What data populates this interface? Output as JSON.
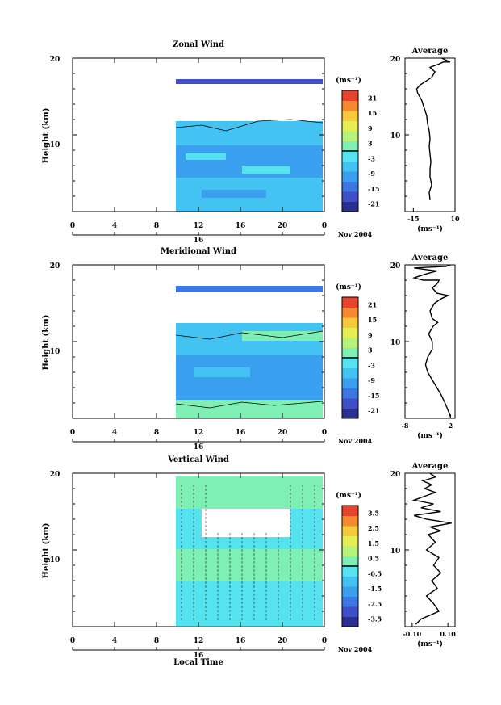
{
  "colors": {
    "bg": "#ffffff",
    "axis": "#000000",
    "scale": [
      "#2b2f8f",
      "#3f4fc8",
      "#3c76e3",
      "#3b9ff0",
      "#43c3f2",
      "#55e3ef",
      "#7ff0b4",
      "#b7f27a",
      "#e6ee54",
      "#f6c93a",
      "#f38a2d",
      "#e8432b"
    ]
  },
  "panels": [
    {
      "title": "Zonal Wind",
      "ylabel": "Height (km)",
      "y_ticks": [
        "20",
        "10"
      ],
      "x_ticks": [
        "0",
        "4",
        "8",
        "12",
        "16",
        "20",
        "0"
      ],
      "day_label": "16",
      "date_label": "Nov 2004",
      "cb_unit": "(ms⁻¹)",
      "cb_ticks": [
        "21",
        "15",
        "9",
        "3",
        "-3",
        "-9",
        "-15",
        "-21"
      ],
      "avg": {
        "title": "Average",
        "x_ticks": [
          "-15",
          "10"
        ],
        "unit": "(ms⁻¹)",
        "xlim": [
          -20,
          10
        ],
        "y_ticks": [
          "20",
          "10"
        ],
        "profile": [
          [
            -5,
            1.5
          ],
          [
            -5.5,
            2.5
          ],
          [
            -4,
            3.5
          ],
          [
            -5,
            4.5
          ],
          [
            -5,
            5.5
          ],
          [
            -4.5,
            6.5
          ],
          [
            -5,
            7.5
          ],
          [
            -5.5,
            8.5
          ],
          [
            -5,
            9.5
          ],
          [
            -5.5,
            10.5
          ],
          [
            -6.5,
            11.5
          ],
          [
            -7,
            12.5
          ],
          [
            -8.5,
            13.5
          ],
          [
            -10,
            14.5
          ],
          [
            -12.5,
            15.5
          ],
          [
            -13,
            16
          ],
          [
            -11,
            16.5
          ],
          [
            -4,
            17.5
          ],
          [
            -2,
            18.2
          ],
          [
            -5,
            18.8
          ],
          [
            0,
            19.2
          ],
          [
            3,
            19.5
          ],
          [
            7,
            19.5
          ],
          [
            2,
            20
          ]
        ]
      }
    },
    {
      "title": "Meridional Wind",
      "ylabel": "Height (km)",
      "y_ticks": [
        "20",
        "10"
      ],
      "x_ticks": [
        "0",
        "4",
        "8",
        "12",
        "16",
        "20",
        "0"
      ],
      "day_label": "16",
      "date_label": "Nov 2004",
      "cb_unit": "(ms⁻¹)",
      "cb_ticks": [
        "21",
        "15",
        "9",
        "3",
        "-3",
        "-9",
        "-15",
        "-21"
      ],
      "avg": {
        "title": "Average",
        "x_ticks": [
          "-8",
          "2"
        ],
        "unit": "(ms⁻¹)",
        "xlim": [
          -8,
          3
        ],
        "y_ticks": [
          "20",
          "10"
        ],
        "profile": [
          [
            2,
            0.2
          ],
          [
            1.5,
            1
          ],
          [
            0.8,
            2
          ],
          [
            0,
            3
          ],
          [
            -1,
            4
          ],
          [
            -2,
            5
          ],
          [
            -3,
            6
          ],
          [
            -3.5,
            7
          ],
          [
            -3,
            8
          ],
          [
            -2,
            9
          ],
          [
            -2,
            10
          ],
          [
            -2.8,
            11
          ],
          [
            -1.8,
            12
          ],
          [
            -0.8,
            12.5
          ],
          [
            -2,
            13
          ],
          [
            -2.5,
            14
          ],
          [
            -1.5,
            15
          ],
          [
            0,
            15.6
          ],
          [
            1.5,
            16
          ],
          [
            -1,
            16.3
          ],
          [
            -2,
            17
          ],
          [
            -1,
            17.5
          ],
          [
            -0.5,
            18
          ],
          [
            -4,
            18
          ],
          [
            -6,
            18.3
          ],
          [
            -3.5,
            18.8
          ],
          [
            -1,
            19.2
          ],
          [
            -6,
            19.6
          ],
          [
            1,
            19.8
          ],
          [
            2,
            20
          ]
        ]
      }
    },
    {
      "title": "Vertical Wind",
      "ylabel": "Height (km)",
      "y_ticks": [
        "20",
        "10"
      ],
      "x_ticks": [
        "0",
        "4",
        "8",
        "12",
        "16",
        "20",
        "0"
      ],
      "day_label": "16",
      "date_label": "Nov 2004",
      "xlabel": "Local Time",
      "cb_unit": "(ms⁻¹)",
      "cb_ticks": [
        "3.5",
        "2.5",
        "1.5",
        "0.5",
        "-0.5",
        "-1.5",
        "-2.5",
        "-3.5"
      ],
      "avg": {
        "title": "Average",
        "x_ticks": [
          "-0.10",
          "0.10"
        ],
        "unit": "(ms⁻¹)",
        "xlim": [
          -0.14,
          0.14
        ],
        "y_ticks": [
          "20",
          "10"
        ],
        "profile": [
          [
            -0.08,
            0.3
          ],
          [
            -0.05,
            1
          ],
          [
            0.0,
            1.5
          ],
          [
            0.05,
            2
          ],
          [
            0.02,
            3
          ],
          [
            -0.02,
            4
          ],
          [
            0.04,
            5
          ],
          [
            0.01,
            6
          ],
          [
            0.06,
            7
          ],
          [
            0.02,
            8
          ],
          [
            0.05,
            9
          ],
          [
            -0.02,
            10
          ],
          [
            0.03,
            11
          ],
          [
            -0.01,
            12
          ],
          [
            0.06,
            12.5
          ],
          [
            0.0,
            13
          ],
          [
            0.12,
            13.5
          ],
          [
            -0.02,
            14
          ],
          [
            -0.09,
            14.5
          ],
          [
            0.06,
            15
          ],
          [
            -0.05,
            15.5
          ],
          [
            0.02,
            16
          ],
          [
            -0.09,
            16.5
          ],
          [
            -0.03,
            17
          ],
          [
            0.03,
            17.5
          ],
          [
            -0.03,
            18
          ],
          [
            0.01,
            18.5
          ],
          [
            -0.04,
            19
          ],
          [
            0.03,
            19.5
          ],
          [
            0.0,
            20
          ]
        ]
      }
    }
  ],
  "chart_data": [
    {
      "type": "heatmap",
      "title": "Zonal Wind",
      "ylabel": "Height (km)",
      "xlabel": "",
      "x_ticks": [
        "0",
        "4",
        "8",
        "12",
        "16",
        "20",
        "0"
      ],
      "ylim": [
        0,
        20
      ],
      "colorbar_ticks": [
        21,
        15,
        9,
        3,
        -3,
        -9,
        -15,
        -21
      ],
      "data_start_local_time": 10,
      "data_region": [
        {
          "height": [
            1,
            5
          ],
          "value": -6
        },
        {
          "height": [
            5,
            9
          ],
          "value": -9
        },
        {
          "height": [
            9,
            12
          ],
          "value": -6
        },
        {
          "height": [
            17.2,
            17.6
          ],
          "value": -21
        }
      ]
    },
    {
      "type": "line",
      "title": "Average",
      "xlabel": "(ms⁻¹)",
      "ylabel": "Height (km)",
      "xlim": [
        -20,
        10
      ],
      "ylim": [
        0,
        20
      ],
      "x": [
        -5,
        -5.5,
        -4,
        -5,
        -5,
        -4.5,
        -5,
        -5.5,
        -5,
        -5.5,
        -6.5,
        -7,
        -8.5,
        -10,
        -12.5,
        -13,
        -11,
        -4,
        -2,
        -5,
        0,
        3,
        7,
        2
      ],
      "y": [
        1.5,
        2.5,
        3.5,
        4.5,
        5.5,
        6.5,
        7.5,
        8.5,
        9.5,
        10.5,
        11.5,
        12.5,
        13.5,
        14.5,
        15.5,
        16,
        16.5,
        17.5,
        18.2,
        18.8,
        19.2,
        19.5,
        19.5,
        20
      ]
    },
    {
      "type": "heatmap",
      "title": "Meridional Wind",
      "ylabel": "Height (km)",
      "xlabel": "",
      "x_ticks": [
        "0",
        "4",
        "8",
        "12",
        "16",
        "20",
        "0"
      ],
      "ylim": [
        0,
        20
      ],
      "colorbar_ticks": [
        21,
        15,
        9,
        3,
        -3,
        -9,
        -15,
        -21
      ],
      "data_start_local_time": 10,
      "data_region": [
        {
          "height": [
            0,
            2
          ],
          "value": 1
        },
        {
          "height": [
            2,
            11
          ],
          "value": -3
        },
        {
          "height": [
            11,
            13
          ],
          "value": 1
        },
        {
          "height": [
            17,
            17.6
          ],
          "value": -15
        }
      ]
    },
    {
      "type": "line",
      "title": "Average",
      "xlabel": "(ms⁻¹)",
      "ylabel": "Height (km)",
      "xlim": [
        -8,
        3
      ],
      "ylim": [
        0,
        20
      ],
      "x": [
        2,
        1.5,
        0.8,
        0,
        -1,
        -2,
        -3,
        -3.5,
        -3,
        -2,
        -2,
        -2.8,
        -1.8,
        -0.8,
        -2,
        -2.5,
        -1.5,
        0,
        1.5,
        -1,
        -2,
        -1,
        -0.5,
        -4,
        -6,
        -3.5,
        -1,
        -6,
        1,
        2
      ],
      "y": [
        0.2,
        1,
        2,
        3,
        4,
        5,
        6,
        7,
        8,
        9,
        10,
        11,
        12,
        12.5,
        13,
        14,
        15,
        15.6,
        16,
        16.3,
        17,
        17.5,
        18,
        18,
        18.3,
        18.8,
        19.2,
        19.6,
        19.8,
        20
      ]
    },
    {
      "type": "heatmap",
      "title": "Vertical Wind",
      "ylabel": "Height (km)",
      "xlabel": "Local Time",
      "x_ticks": [
        "0",
        "4",
        "8",
        "12",
        "16",
        "20",
        "0"
      ],
      "ylim": [
        0,
        20
      ],
      "colorbar_ticks": [
        3.5,
        2.5,
        1.5,
        0.5,
        -0.5,
        -1.5,
        -2.5,
        -3.5
      ],
      "data_start_local_time": 10,
      "data_region": [
        {
          "height": [
            0,
            9
          ],
          "value": 0
        },
        {
          "height": [
            9,
            14
          ],
          "value": 0.5
        },
        {
          "height": [
            14,
            20
          ],
          "value": 0.2
        }
      ]
    },
    {
      "type": "line",
      "title": "Average",
      "xlabel": "(ms⁻¹)",
      "ylabel": "Height (km)",
      "xlim": [
        -0.14,
        0.14
      ],
      "ylim": [
        0,
        20
      ],
      "x": [
        -0.08,
        -0.05,
        0.0,
        0.05,
        0.02,
        -0.02,
        0.04,
        0.01,
        0.06,
        0.02,
        0.05,
        -0.02,
        0.03,
        -0.01,
        0.06,
        0.0,
        0.12,
        -0.02,
        -0.09,
        0.06,
        -0.05,
        0.02,
        -0.09,
        -0.03,
        0.03,
        -0.03,
        0.01,
        -0.04,
        0.03,
        0.0
      ],
      "y": [
        0.3,
        1,
        1.5,
        2,
        3,
        4,
        5,
        6,
        7,
        8,
        9,
        10,
        11,
        12,
        12.5,
        13,
        13.5,
        14,
        14.5,
        15,
        15.5,
        16,
        16.5,
        17,
        17.5,
        18,
        18.5,
        19,
        19.5,
        20
      ]
    }
  ]
}
